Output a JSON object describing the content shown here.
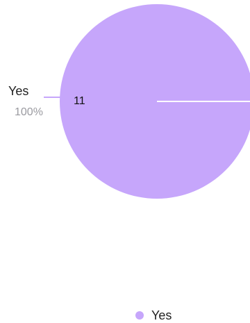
{
  "chart_data": {
    "type": "pie",
    "slices": [
      {
        "label": "Yes",
        "value": 11,
        "percent_label": "100%"
      }
    ],
    "legend": {
      "position": "bottom",
      "entries": [
        {
          "label": "Yes"
        }
      ]
    }
  },
  "colors": {
    "slice_yes": "#c6a6fb",
    "separator": "#ffffff",
    "label_text": "#222222",
    "percent_text": "#9a9aa0",
    "value_text": "#111111"
  }
}
